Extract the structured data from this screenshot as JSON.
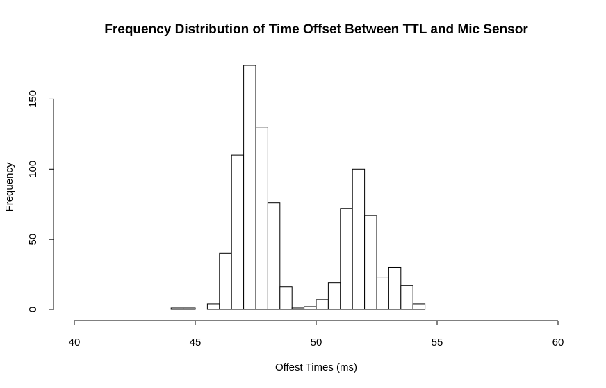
{
  "chart_data": {
    "type": "bar",
    "title": "Frequency Distribution of Time Offset Between TTL and Mic Sensor",
    "xlabel": "Offest Times (ms)",
    "ylabel": "Frequency",
    "xlim": [
      40,
      60
    ],
    "ylim": [
      0,
      175
    ],
    "x_ticks": [
      40,
      45,
      50,
      55,
      60
    ],
    "y_ticks": [
      0,
      50,
      100,
      150
    ],
    "bin_width": 0.5,
    "bins": [
      {
        "x0": 44.0,
        "value": 1
      },
      {
        "x0": 44.5,
        "value": 1
      },
      {
        "x0": 45.0,
        "value": 0
      },
      {
        "x0": 45.5,
        "value": 4
      },
      {
        "x0": 46.0,
        "value": 40
      },
      {
        "x0": 46.5,
        "value": 110
      },
      {
        "x0": 47.0,
        "value": 174
      },
      {
        "x0": 47.5,
        "value": 130
      },
      {
        "x0": 48.0,
        "value": 76
      },
      {
        "x0": 48.5,
        "value": 16
      },
      {
        "x0": 49.0,
        "value": 1
      },
      {
        "x0": 49.5,
        "value": 2
      },
      {
        "x0": 50.0,
        "value": 7
      },
      {
        "x0": 50.5,
        "value": 19
      },
      {
        "x0": 51.0,
        "value": 72
      },
      {
        "x0": 51.5,
        "value": 100
      },
      {
        "x0": 52.0,
        "value": 67
      },
      {
        "x0": 52.5,
        "value": 23
      },
      {
        "x0": 53.0,
        "value": 30
      },
      {
        "x0": 53.5,
        "value": 17
      },
      {
        "x0": 54.0,
        "value": 4
      }
    ],
    "colors": {
      "bar_fill": "#ffffff",
      "bar_stroke": "#000000"
    },
    "grid": false
  }
}
